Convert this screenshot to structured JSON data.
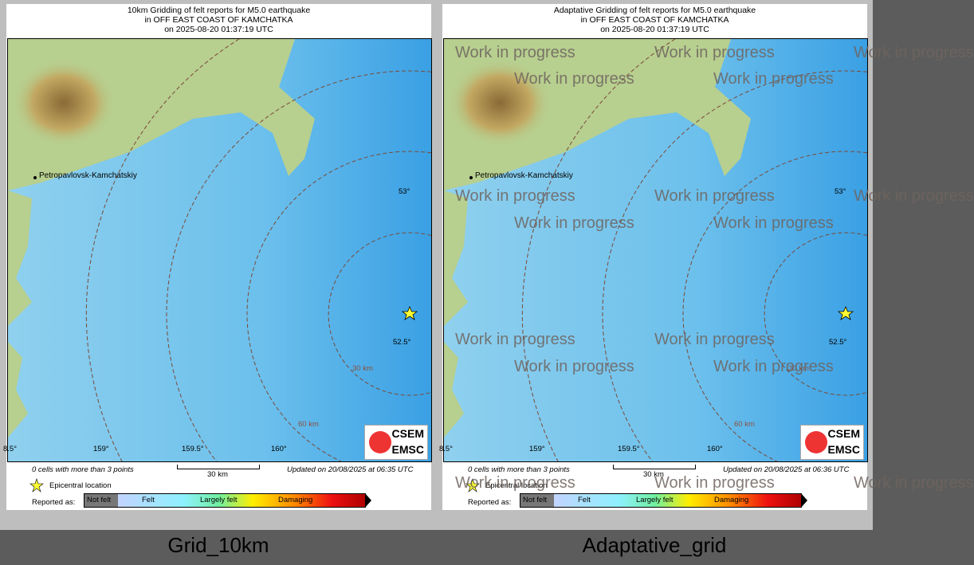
{
  "panels": [
    {
      "title": [
        "10km Gridding of felt reports for M5.0 earthquake",
        "in OFF EAST COAST OF KAMCHATKA",
        "on  2025-08-20 01:37:19 UTC"
      ],
      "updated": "Updated on 20/08/2025 at 06:35 UTC",
      "caption": "Grid_10km",
      "watermark": false
    },
    {
      "title": [
        "Adaptative Gridding of felt reports for M5.0 earthquake",
        "in OFF EAST COAST OF KAMCHATKA",
        "on  2025-08-20 01:37:19 UTC"
      ],
      "updated": "Updated on 20/08/2025 at 06:36 UTC",
      "caption": "Adaptative_grid",
      "watermark": true
    }
  ],
  "map": {
    "city": "Petropavlovsk-Kamchatskiy",
    "lat_labels": [
      "53°",
      "52.5°"
    ],
    "lon_labels": [
      "8.5°",
      "159°",
      "159.5°",
      "160°"
    ],
    "ring_labels": [
      "30 km",
      "60 km"
    ],
    "scale_label": "30 km",
    "cells_note": "0 cells with more than 3 points",
    "logo": [
      "CSEM",
      "EMSC"
    ]
  },
  "legend": {
    "epicenter": "Epicentral location",
    "reported_as": "Reported as:",
    "classes": [
      "Not felt",
      "Felt",
      "Largely felt",
      "Damaging"
    ]
  },
  "watermark_text": "Work in progress",
  "colors": {
    "ocean": "#7cc6ec",
    "land": "#b7cf8f",
    "ring": "#7a4a3a",
    "epicenter": "#ffff33"
  }
}
